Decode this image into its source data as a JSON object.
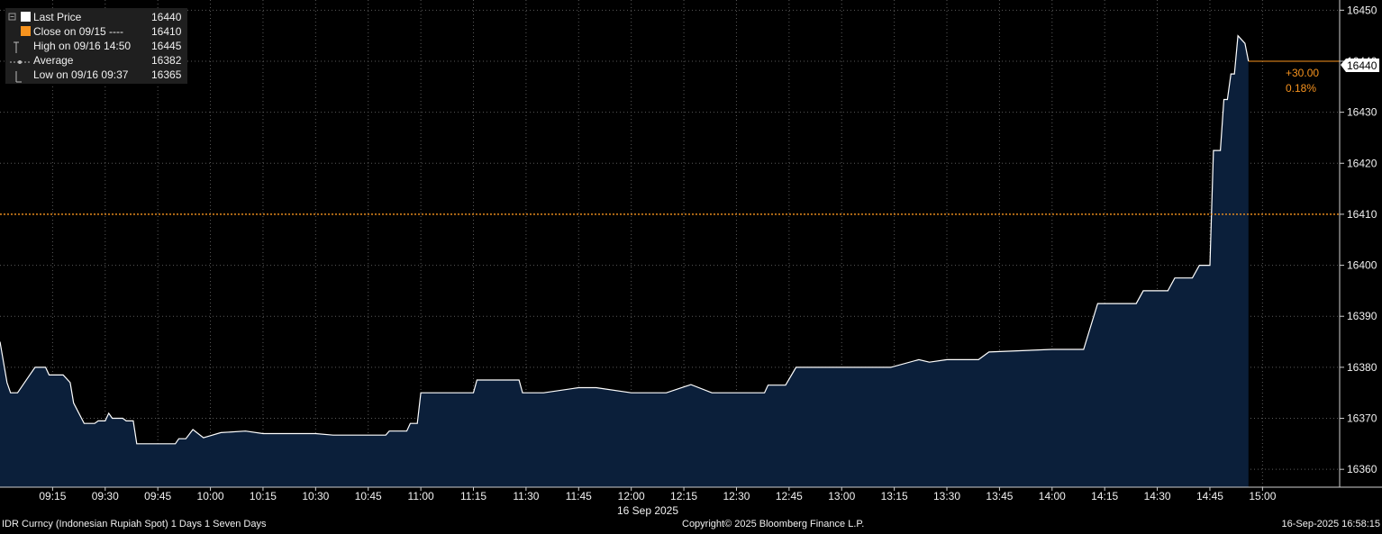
{
  "legend": {
    "items": [
      {
        "label": "Last Price",
        "value": "16440",
        "icon": "white-square-icon",
        "color": "#ffffff"
      },
      {
        "label": "Close on 09/15 ----",
        "value": "16410",
        "icon": "orange-square-icon",
        "color": "#f7931e"
      },
      {
        "label": "High on 09/16 14:50",
        "value": "16445",
        "icon": "high-marker-icon"
      },
      {
        "label": "Average",
        "value": "16382",
        "icon": "average-marker-icon"
      },
      {
        "label": "Low on 09/16 09:37",
        "value": "16365",
        "icon": "low-marker-icon"
      }
    ]
  },
  "change": {
    "abs": "+30.00",
    "pct": "0.18%",
    "color": "#f7931e"
  },
  "last_price_tag": "16440",
  "xaxis_date": "16 Sep 2025",
  "footer": {
    "left": "IDR Curncy (Indonesian Rupiah Spot) 1 Days 1 Seven Days",
    "center": "Copyright© 2025 Bloomberg Finance L.P.",
    "right": "16-Sep-2025 16:58:15"
  },
  "colors": {
    "line": "#ffffff",
    "fill": "#0b1f3a",
    "close_line": "#f7931e",
    "grid": "#5a5a5a",
    "tag_bg": "#ffffff"
  },
  "chart_data": {
    "type": "area",
    "title": "",
    "xlabel": "16 Sep 2025",
    "ylabel": "",
    "xlim": [
      "09:00",
      "15:22"
    ],
    "ylim": [
      16356.5,
      16452
    ],
    "x_ticks": [
      "09:15",
      "09:30",
      "09:45",
      "10:00",
      "10:15",
      "10:30",
      "10:45",
      "11:00",
      "11:15",
      "11:30",
      "11:45",
      "12:00",
      "12:15",
      "12:30",
      "12:45",
      "13:00",
      "13:15",
      "13:30",
      "13:45",
      "14:00",
      "14:15",
      "14:30",
      "14:45",
      "15:00"
    ],
    "y_ticks": [
      16360,
      16370,
      16380,
      16390,
      16400,
      16410,
      16420,
      16430,
      16440,
      16450
    ],
    "close_reference": 16410,
    "grid": true,
    "series": [
      {
        "name": "Last Price",
        "points": [
          [
            "09:00",
            16385
          ],
          [
            "09:01",
            16381
          ],
          [
            "09:02",
            16377
          ],
          [
            "09:03",
            16375
          ],
          [
            "09:05",
            16375
          ],
          [
            "09:08",
            16378
          ],
          [
            "09:10",
            16380
          ],
          [
            "09:13",
            16380
          ],
          [
            "09:14",
            16378.5
          ],
          [
            "09:18",
            16378.5
          ],
          [
            "09:20",
            16377
          ],
          [
            "09:21",
            16373
          ],
          [
            "09:24",
            16369
          ],
          [
            "09:27",
            16369
          ],
          [
            "09:28",
            16369.5
          ],
          [
            "09:30",
            16369.5
          ],
          [
            "09:31",
            16371
          ],
          [
            "09:32",
            16370
          ],
          [
            "09:35",
            16370
          ],
          [
            "09:36",
            16369.5
          ],
          [
            "09:38",
            16369.5
          ],
          [
            "09:39",
            16365
          ],
          [
            "09:50",
            16365
          ],
          [
            "09:51",
            16366
          ],
          [
            "09:53",
            16366
          ],
          [
            "09:55",
            16367.8
          ],
          [
            "09:58",
            16366.2
          ],
          [
            "10:00",
            16366.6
          ],
          [
            "10:03",
            16367.2
          ],
          [
            "10:10",
            16367.5
          ],
          [
            "10:15",
            16367
          ],
          [
            "10:20",
            16367
          ],
          [
            "10:30",
            16367
          ],
          [
            "10:35",
            16366.7
          ],
          [
            "10:50",
            16366.7
          ],
          [
            "10:51",
            16367.5
          ],
          [
            "10:56",
            16367.5
          ],
          [
            "10:57",
            16369
          ],
          [
            "10:59",
            16369
          ],
          [
            "11:00",
            16375
          ],
          [
            "11:15",
            16375
          ],
          [
            "11:16",
            16377.5
          ],
          [
            "11:28",
            16377.5
          ],
          [
            "11:29",
            16375
          ],
          [
            "11:35",
            16375
          ],
          [
            "11:45",
            16376
          ],
          [
            "11:50",
            16376
          ],
          [
            "12:00",
            16375
          ],
          [
            "12:10",
            16375
          ],
          [
            "12:17",
            16376.6
          ],
          [
            "12:23",
            16375
          ],
          [
            "12:38",
            16375
          ],
          [
            "12:39",
            16376.5
          ],
          [
            "12:44",
            16376.5
          ],
          [
            "12:47",
            16380
          ],
          [
            "13:05",
            16380
          ],
          [
            "13:14",
            16380
          ],
          [
            "13:22",
            16381.5
          ],
          [
            "13:25",
            16381
          ],
          [
            "13:30",
            16381.5
          ],
          [
            "13:39",
            16381.5
          ],
          [
            "13:42",
            16383
          ],
          [
            "14:00",
            16383.5
          ],
          [
            "14:09",
            16383.5
          ],
          [
            "14:13",
            16392.5
          ],
          [
            "14:24",
            16392.5
          ],
          [
            "14:26",
            16395
          ],
          [
            "14:33",
            16395
          ],
          [
            "14:35",
            16397.5
          ],
          [
            "14:40",
            16397.5
          ],
          [
            "14:42",
            16400
          ],
          [
            "14:45",
            16400
          ],
          [
            "14:46",
            16422.5
          ],
          [
            "14:48",
            16422.5
          ],
          [
            "14:49",
            16432.5
          ],
          [
            "14:50",
            16432.5
          ],
          [
            "14:51",
            16437.5
          ],
          [
            "14:52",
            16437.5
          ],
          [
            "14:53",
            16445
          ],
          [
            "14:55",
            16443.5
          ],
          [
            "14:56",
            16440
          ]
        ]
      }
    ]
  }
}
